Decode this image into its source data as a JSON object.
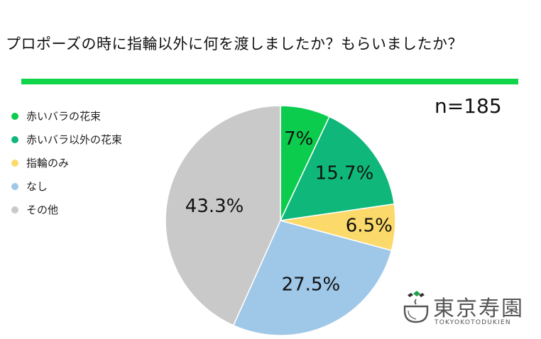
{
  "title": "プロポーズの時に指輪以外に何を渡しましたか？もらいましたか？",
  "sample_note": "n=185",
  "brand": {
    "name": "東京寿園",
    "romaji": "TOKYOKOTODUKIEN",
    "logo_icon": "teacup-logo-icon"
  },
  "colors": {
    "title_rule": "#10d44a"
  },
  "chart_data": {
    "type": "pie",
    "title": "プロポーズの時に指輪以外に何を渡しましたか？もらいましたか？",
    "start_angle_deg": 0,
    "direction": "clockwise",
    "series": [
      {
        "label": "赤いバラの花束",
        "value": 7,
        "display": "7%",
        "color": "#0ccc4e"
      },
      {
        "label": "赤いバラ以外の花束",
        "value": 15.7,
        "display": "15.7%",
        "color": "#0fb87a"
      },
      {
        "label": "指輪のみ",
        "value": 6.5,
        "display": "6.5%",
        "color": "#fbd96a"
      },
      {
        "label": "なし",
        "value": 27.5,
        "display": "27.5%",
        "color": "#9fc7e7"
      },
      {
        "label": "その他",
        "value": 43.3,
        "display": "43.3%",
        "color": "#c9c9c9"
      }
    ],
    "legend_position": "left"
  }
}
